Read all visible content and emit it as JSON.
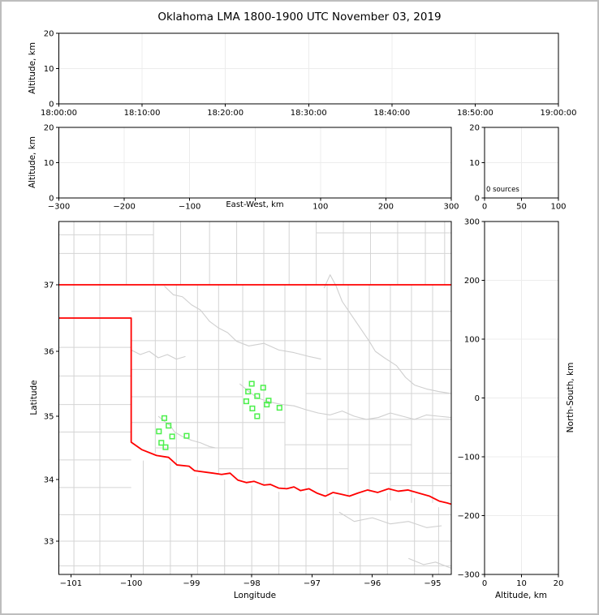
{
  "title": "Oklahoma LMA 1800-1900 UTC November 03, 2019",
  "colors": {
    "state_border": "#ff0000",
    "county_line": "#d4d4d4",
    "river_line": "#cfcfcf",
    "source_marker": "#4cf04c",
    "grid": "#ececec",
    "axis": "#000000",
    "frame_outline": "#bdbdbd"
  },
  "panels": {
    "time_height": {
      "ylabel": "Altitude, km",
      "yticks": [
        0,
        10,
        20
      ],
      "xtick_labels": [
        "18:00:00",
        "18:10:00",
        "18:20:00",
        "18:30:00",
        "18:40:00",
        "18:50:00",
        "19:00:00"
      ]
    },
    "ew_height": {
      "ylabel": "Altitude, km",
      "xlabel": "East-West, km",
      "xticks": [
        -300,
        -200,
        -100,
        0,
        100,
        200,
        300
      ],
      "yticks": [
        0,
        10,
        20
      ]
    },
    "alt_hist": {
      "annotation": "0 sources",
      "xticks": [
        0,
        50,
        100
      ],
      "yticks": [
        0,
        10,
        20
      ]
    },
    "map": {
      "xlabel": "Longitude",
      "ylabel": "Latitude",
      "xticks": [
        -101,
        -100,
        -99,
        -98,
        -97,
        -96,
        -95
      ],
      "yticks": [
        33,
        34,
        35,
        36,
        37
      ]
    },
    "ns_height": {
      "xlabel": "Altitude, km",
      "ylabel": "North-South, km",
      "xticks": [
        0,
        10,
        20
      ],
      "yticks": [
        -300,
        -200,
        -100,
        0,
        100,
        200,
        300
      ]
    }
  },
  "chart_data": {
    "type": "scatter",
    "title": "Oklahoma LMA 1800-1900 UTC November 03, 2019",
    "time_axis": {
      "labels": [
        "18:00:00",
        "18:10:00",
        "18:20:00",
        "18:30:00",
        "18:40:00",
        "18:50:00",
        "19:00:00"
      ],
      "ylim": [
        0,
        20
      ]
    },
    "ew_axis": {
      "xlim": [
        -300,
        300
      ],
      "ylim": [
        0,
        20
      ]
    },
    "alt_hist_axis": {
      "xlim": [
        0,
        100
      ],
      "ylim": [
        0,
        20
      ],
      "count_label": "0 sources"
    },
    "ns_axis": {
      "xlim": [
        0,
        20
      ],
      "ylim": [
        -300,
        300
      ]
    },
    "map_xlim": [
      -101.2,
      -94.69
    ],
    "map_ylim": [
      32.46,
      37.95
    ],
    "sources_lonlat": [
      [
        -99.45,
        34.97
      ],
      [
        -99.38,
        34.85
      ],
      [
        -99.54,
        34.76
      ],
      [
        -99.32,
        34.68
      ],
      [
        -99.08,
        34.69
      ],
      [
        -99.5,
        34.58
      ],
      [
        -99.43,
        34.51
      ],
      [
        -98.0,
        35.5
      ],
      [
        -97.81,
        35.44
      ],
      [
        -98.06,
        35.38
      ],
      [
        -97.91,
        35.31
      ],
      [
        -98.09,
        35.23
      ],
      [
        -97.72,
        35.24
      ],
      [
        -97.75,
        35.18
      ],
      [
        -97.99,
        35.12
      ],
      [
        -97.54,
        35.13
      ],
      [
        -97.91,
        35.0
      ]
    ],
    "state_border": [
      [
        [
          -101.2,
          37.0
        ],
        [
          -94.69,
          37.0
        ]
      ],
      [
        [
          -101.2,
          36.5
        ],
        [
          -100.0,
          36.5
        ],
        [
          -100.0,
          34.59
        ],
        [
          -99.82,
          34.47
        ],
        [
          -99.58,
          34.38
        ],
        [
          -99.38,
          34.35
        ],
        [
          -99.24,
          34.23
        ],
        [
          -99.04,
          34.21
        ],
        [
          -98.95,
          34.14
        ],
        [
          -98.64,
          34.1
        ],
        [
          -98.5,
          34.08
        ],
        [
          -98.36,
          34.1
        ],
        [
          -98.23,
          33.99
        ],
        [
          -98.09,
          33.95
        ],
        [
          -97.96,
          33.97
        ],
        [
          -97.8,
          33.91
        ],
        [
          -97.69,
          33.92
        ],
        [
          -97.55,
          33.86
        ],
        [
          -97.42,
          33.85
        ],
        [
          -97.3,
          33.88
        ],
        [
          -97.19,
          33.82
        ],
        [
          -97.05,
          33.85
        ],
        [
          -96.92,
          33.78
        ],
        [
          -96.78,
          33.73
        ],
        [
          -96.65,
          33.79
        ],
        [
          -96.51,
          33.76
        ],
        [
          -96.38,
          33.73
        ],
        [
          -96.24,
          33.78
        ],
        [
          -96.08,
          33.83
        ],
        [
          -95.91,
          33.79
        ],
        [
          -95.73,
          33.85
        ],
        [
          -95.57,
          33.81
        ],
        [
          -95.41,
          33.83
        ],
        [
          -95.23,
          33.78
        ],
        [
          -95.05,
          33.73
        ],
        [
          -94.89,
          33.65
        ],
        [
          -94.76,
          33.62
        ],
        [
          -94.69,
          33.6
        ]
      ]
    ],
    "counties": [
      [
        -100.08,
        37,
        -100.08,
        37.95
      ],
      [
        -99.63,
        37,
        -99.63,
        37.95
      ],
      [
        -99.18,
        37,
        -99.18,
        37.95
      ],
      [
        -98.7,
        37,
        -98.7,
        37.95
      ],
      [
        -98.25,
        37,
        -98.25,
        37.95
      ],
      [
        -97.8,
        37,
        -97.8,
        37.95
      ],
      [
        -97.38,
        37,
        -97.38,
        37.95
      ],
      [
        -96.93,
        37,
        -96.93,
        37.95
      ],
      [
        -96.48,
        37,
        -96.48,
        37.95
      ],
      [
        -96.03,
        37,
        -96.03,
        37.95
      ],
      [
        -95.58,
        37,
        -95.58,
        37.95
      ],
      [
        -95.12,
        37,
        -95.12,
        37.95
      ],
      [
        -94.8,
        37,
        -94.8,
        37.95
      ],
      [
        -100.95,
        32.46,
        -100.95,
        37.95
      ],
      [
        -100.52,
        32.46,
        -100.52,
        37.95
      ],
      [
        -101.2,
        37.47,
        -94.69,
        37.47
      ],
      [
        -101.2,
        37.75,
        -99.63,
        37.75
      ],
      [
        -96.93,
        37.78,
        -94.69,
        37.78
      ],
      [
        -101.2,
        36.06,
        -100,
        36.06
      ],
      [
        -101.2,
        35.62,
        -100,
        35.62
      ],
      [
        -101.2,
        35.18,
        -100,
        35.18
      ],
      [
        -101.2,
        34.75,
        -100,
        34.75
      ],
      [
        -101.2,
        34.31,
        -100,
        34.31
      ],
      [
        -101.2,
        33.87,
        -100,
        33.87
      ],
      [
        -99.6,
        37,
        -99.6,
        34.42
      ],
      [
        -99.25,
        37,
        -99.25,
        34.22
      ],
      [
        -98.9,
        37,
        -98.9,
        34.12
      ],
      [
        -98.55,
        37,
        -98.55,
        34.08
      ],
      [
        -98.15,
        37,
        -98.15,
        34.0
      ],
      [
        -97.8,
        37,
        -97.8,
        33.9
      ],
      [
        -97.45,
        37,
        -97.45,
        33.86
      ],
      [
        -97.1,
        37,
        -97.1,
        33.82
      ],
      [
        -96.75,
        37,
        -96.75,
        33.76
      ],
      [
        -96.4,
        37,
        -96.4,
        33.74
      ],
      [
        -96.05,
        37,
        -96.05,
        33.79
      ],
      [
        -95.7,
        37,
        -95.7,
        33.66
      ],
      [
        -95.35,
        37,
        -95.35,
        33.62
      ],
      [
        -95.0,
        37,
        -95.0,
        33.62
      ],
      [
        -100,
        36.6,
        -94.69,
        36.6
      ],
      [
        -100,
        36.16,
        -94.69,
        36.16
      ],
      [
        -100,
        35.72,
        -94.69,
        35.72
      ],
      [
        -100,
        35.3,
        -98.15,
        35.3
      ],
      [
        -97.1,
        35.35,
        -94.69,
        35.35
      ],
      [
        -100,
        34.9,
        -97.45,
        34.9
      ],
      [
        -96.75,
        34.95,
        -94.69,
        34.95
      ],
      [
        -99.6,
        34.5,
        -98.15,
        34.5
      ],
      [
        -97.45,
        34.55,
        -95.35,
        34.55
      ],
      [
        -98.55,
        34.17,
        -96.4,
        34.17
      ],
      [
        -96.05,
        34.1,
        -94.69,
        34.1
      ],
      [
        -95.7,
        33.9,
        -94.69,
        33.9
      ],
      [
        -99.8,
        32.46,
        -99.8,
        34.3
      ],
      [
        -99.35,
        32.46,
        -99.35,
        34.28
      ],
      [
        -98.9,
        32.46,
        -98.9,
        34.05
      ],
      [
        -98.45,
        32.46,
        -98.45,
        34.0
      ],
      [
        -98.0,
        32.46,
        -98.0,
        33.9
      ],
      [
        -97.55,
        32.46,
        -97.55,
        33.8
      ],
      [
        -97.1,
        32.46,
        -97.1,
        33.78
      ],
      [
        -96.65,
        32.46,
        -96.65,
        33.72
      ],
      [
        -96.2,
        32.46,
        -96.2,
        33.7
      ],
      [
        -95.75,
        32.46,
        -95.75,
        33.78
      ],
      [
        -95.3,
        32.46,
        -95.3,
        33.7
      ],
      [
        -94.9,
        32.46,
        -94.9,
        33.55
      ],
      [
        -101.2,
        33.43,
        -94.69,
        33.43
      ],
      [
        -101.2,
        33.0,
        -94.69,
        33.0
      ],
      [
        -101.2,
        32.6,
        -94.69,
        32.6
      ]
    ],
    "rivers": [
      [
        [
          -99.45,
          36.98
        ],
        [
          -99.3,
          36.85
        ],
        [
          -99.15,
          36.82
        ],
        [
          -99.0,
          36.7
        ],
        [
          -98.85,
          36.62
        ],
        [
          -98.7,
          36.45
        ],
        [
          -98.55,
          36.35
        ],
        [
          -98.4,
          36.28
        ],
        [
          -98.25,
          36.15
        ],
        [
          -98.05,
          36.08
        ],
        [
          -97.8,
          36.12
        ],
        [
          -97.55,
          36.02
        ],
        [
          -97.3,
          35.98
        ],
        [
          -97.05,
          35.92
        ],
        [
          -96.85,
          35.88
        ]
      ],
      [
        [
          -96.8,
          36.95
        ],
        [
          -96.7,
          37.15
        ],
        [
          -96.6,
          36.98
        ],
        [
          -96.5,
          36.75
        ],
        [
          -96.35,
          36.55
        ],
        [
          -96.2,
          36.35
        ],
        [
          -96.05,
          36.15
        ],
        [
          -95.95,
          36.0
        ],
        [
          -95.8,
          35.9
        ],
        [
          -95.6,
          35.78
        ],
        [
          -95.45,
          35.6
        ],
        [
          -95.3,
          35.48
        ],
        [
          -95.1,
          35.42
        ],
        [
          -94.9,
          35.38
        ],
        [
          -94.69,
          35.35
        ]
      ],
      [
        [
          -98.2,
          35.5
        ],
        [
          -98.05,
          35.38
        ],
        [
          -97.9,
          35.28
        ],
        [
          -97.7,
          35.22
        ],
        [
          -97.5,
          35.18
        ],
        [
          -97.3,
          35.16
        ],
        [
          -97.1,
          35.1
        ],
        [
          -96.9,
          35.05
        ],
        [
          -96.7,
          35.02
        ],
        [
          -96.5,
          35.08
        ],
        [
          -96.3,
          35.0
        ],
        [
          -96.1,
          34.95
        ],
        [
          -95.9,
          34.98
        ],
        [
          -95.7,
          35.05
        ],
        [
          -95.5,
          35.0
        ],
        [
          -95.3,
          34.95
        ],
        [
          -95.1,
          35.02
        ],
        [
          -94.9,
          35.0
        ],
        [
          -94.69,
          34.98
        ]
      ],
      [
        [
          -99.55,
          35.0
        ],
        [
          -99.45,
          34.92
        ],
        [
          -99.35,
          34.85
        ],
        [
          -99.28,
          34.75
        ],
        [
          -99.15,
          34.68
        ],
        [
          -99.0,
          34.62
        ],
        [
          -98.85,
          34.58
        ],
        [
          -98.7,
          34.52
        ],
        [
          -98.6,
          34.5
        ]
      ],
      [
        [
          -100.0,
          36.02
        ],
        [
          -99.85,
          35.95
        ],
        [
          -99.7,
          36.0
        ],
        [
          -99.55,
          35.9
        ],
        [
          -99.4,
          35.95
        ],
        [
          -99.25,
          35.88
        ],
        [
          -99.1,
          35.92
        ]
      ],
      [
        [
          -96.55,
          33.47
        ],
        [
          -96.3,
          33.32
        ],
        [
          -96.0,
          33.38
        ],
        [
          -95.7,
          33.28
        ],
        [
          -95.4,
          33.32
        ],
        [
          -95.1,
          33.22
        ],
        [
          -94.85,
          33.25
        ]
      ],
      [
        [
          -95.4,
          32.72
        ],
        [
          -95.15,
          32.62
        ],
        [
          -94.95,
          32.66
        ],
        [
          -94.69,
          32.56
        ]
      ]
    ]
  }
}
